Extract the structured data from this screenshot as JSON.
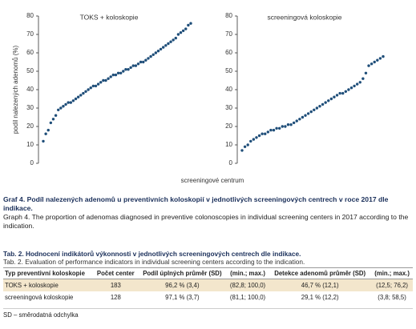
{
  "chart_data": [
    {
      "type": "scatter",
      "title": "TOKS + koloskopie",
      "y_label": "podíl nalezených adenomů (%)",
      "color": "#1f4e79",
      "ylim": [
        0,
        80
      ],
      "yticks": [
        0,
        10,
        20,
        30,
        40,
        50,
        60,
        70,
        80
      ],
      "values": [
        12,
        16,
        18,
        22,
        24,
        26,
        29,
        30,
        31,
        32,
        33,
        33,
        34,
        35,
        36,
        37,
        38,
        39,
        40,
        41,
        42,
        42,
        43,
        44,
        45,
        45,
        46,
        47,
        48,
        48,
        49,
        49,
        50,
        51,
        51,
        52,
        53,
        53,
        54,
        55,
        55,
        56,
        57,
        58,
        59,
        60,
        61,
        62,
        63,
        64,
        65,
        66,
        67,
        68,
        70,
        71,
        72,
        73,
        75,
        76
      ]
    },
    {
      "type": "scatter",
      "title": "screeningová koloskopie",
      "color": "#1f4e79",
      "ylim": [
        0,
        80
      ],
      "yticks": [
        0,
        10,
        20,
        30,
        40,
        50,
        60,
        70,
        80
      ],
      "values": [
        7,
        9,
        10,
        12,
        13,
        14,
        15,
        16,
        16,
        17,
        18,
        18,
        19,
        19,
        20,
        20,
        21,
        21,
        22,
        23,
        24,
        25,
        26,
        27,
        28,
        29,
        30,
        31,
        32,
        33,
        34,
        35,
        36,
        37,
        38,
        38,
        39,
        40,
        41,
        42,
        43,
        44,
        46,
        49,
        53,
        54,
        55,
        56,
        57,
        58
      ]
    }
  ],
  "shared_x_label": "screeningové centrum",
  "caption": {
    "czech": "Graf 4. Podíl nalezených adenomů u preventivních koloskopií v jednotlivých screeningových centrech v roce 2017 dle indikace.",
    "english": "Graph 4. The proportion of adenomas diagnosed in preventive colonoscopies in individual screening centers in 2017 according to the indication."
  },
  "table": {
    "title_czech": "Tab. 2. Hodnocení indikátorů výkonnosti v jednotlivých screeningových centrech dle indikace.",
    "title_english": "Tab. 2. Evaluation of performance indicators in individual screening centers according to the indication.",
    "header": [
      "Typ preventivní koloskopie",
      "Počet center",
      "Podíl úplných průměr (SD)",
      "(min.; max.)",
      "Detekce adenomů průměr (SD)",
      "(min.; max.)"
    ],
    "rows": [
      [
        "TOKS + koloskopie",
        "183",
        "96,2 % (3,4)",
        "(82,8; 100,0)",
        "46,7 % (12,1)",
        "(12,5; 76,2)"
      ],
      [
        "screeningová koloskopie",
        "128",
        "97,1 % (3,7)",
        "(81,1; 100,0)",
        "29,1 % (12,2)",
        "(3,8; 58,5)"
      ]
    ],
    "footnote": "SD – směrodatná odchylka"
  }
}
